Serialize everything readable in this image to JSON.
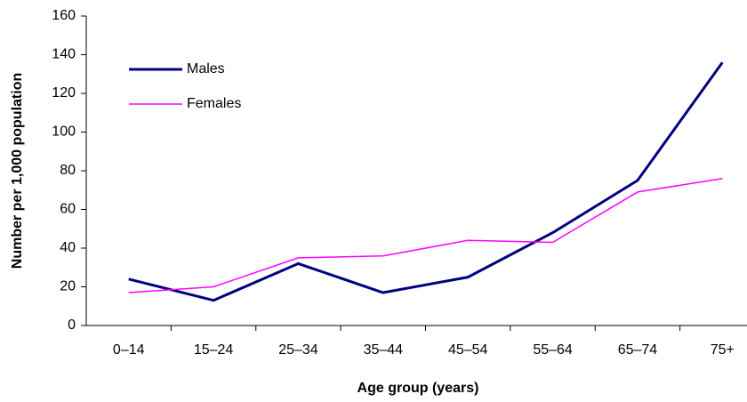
{
  "chart_data": {
    "type": "line",
    "xlabel": "Age group (years)",
    "ylabel": "Number per 1,000 population",
    "categories": [
      "0–14",
      "15–24",
      "25–34",
      "35–44",
      "45–54",
      "55–64",
      "65–74",
      "75+"
    ],
    "series": [
      {
        "name": "Males",
        "color": "#000080",
        "values": [
          24,
          13,
          32,
          17,
          25,
          48,
          75,
          136
        ]
      },
      {
        "name": "Females",
        "color": "#ff00ff",
        "values": [
          17,
          20,
          35,
          36,
          44,
          43,
          69,
          76
        ]
      }
    ],
    "ylim": [
      0,
      160
    ],
    "yticks": [
      0,
      20,
      40,
      60,
      80,
      100,
      120,
      140,
      160
    ],
    "grid": false,
    "legend": "upper left"
  }
}
